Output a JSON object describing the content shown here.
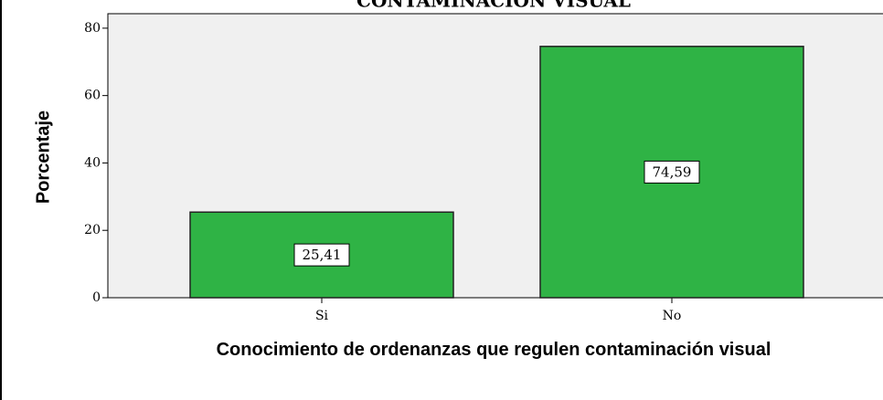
{
  "chart_data": {
    "type": "bar",
    "title": "CONTAMINACIÓN VISUAL",
    "categories": [
      "Si",
      "No"
    ],
    "values": [
      25.41,
      74.59
    ],
    "value_labels": [
      "25,41",
      "74,59"
    ],
    "color": "#2fb345",
    "ylim": [
      0,
      84.3
    ],
    "yticks": [
      0,
      20,
      40,
      60,
      80
    ],
    "ylabel": "Porcentaje",
    "xlabel": "Conocimiento de ordenanzas que regulen contaminación visual"
  }
}
